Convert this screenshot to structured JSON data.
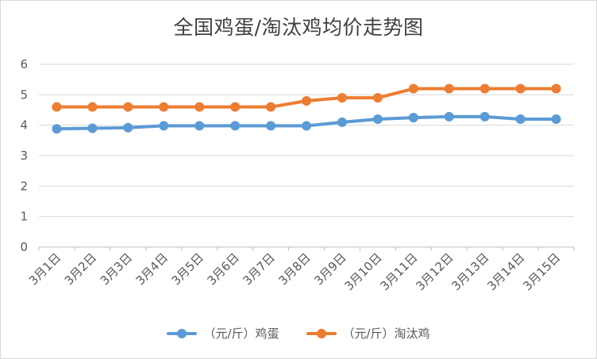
{
  "chart_data": {
    "type": "line",
    "title": "全国鸡蛋/淘汰鸡均价走势图",
    "categories": [
      "3月1日",
      "3月2日",
      "3月3日",
      "3月4日",
      "3月5日",
      "3月6日",
      "3月7日",
      "3月8日",
      "3月9日",
      "3月10日",
      "3月11日",
      "3月12日",
      "3月13日",
      "3月14日",
      "3月15日"
    ],
    "series": [
      {
        "name": "（元/斤）鸡蛋",
        "color": "#5b9bd5",
        "values": [
          3.88,
          3.9,
          3.92,
          3.98,
          3.98,
          3.98,
          3.98,
          3.98,
          4.1,
          4.2,
          4.25,
          4.28,
          4.28,
          4.2,
          4.2
        ]
      },
      {
        "name": "（元/斤）淘汰鸡",
        "color": "#ed7d31",
        "values": [
          4.6,
          4.6,
          4.6,
          4.6,
          4.6,
          4.6,
          4.6,
          4.8,
          4.9,
          4.9,
          5.2,
          5.2,
          5.2,
          5.2,
          5.2
        ]
      }
    ],
    "ylim": [
      0,
      6
    ],
    "yticks": [
      0,
      1,
      2,
      3,
      4,
      5,
      6
    ],
    "grid": true,
    "legend_position": "bottom"
  }
}
